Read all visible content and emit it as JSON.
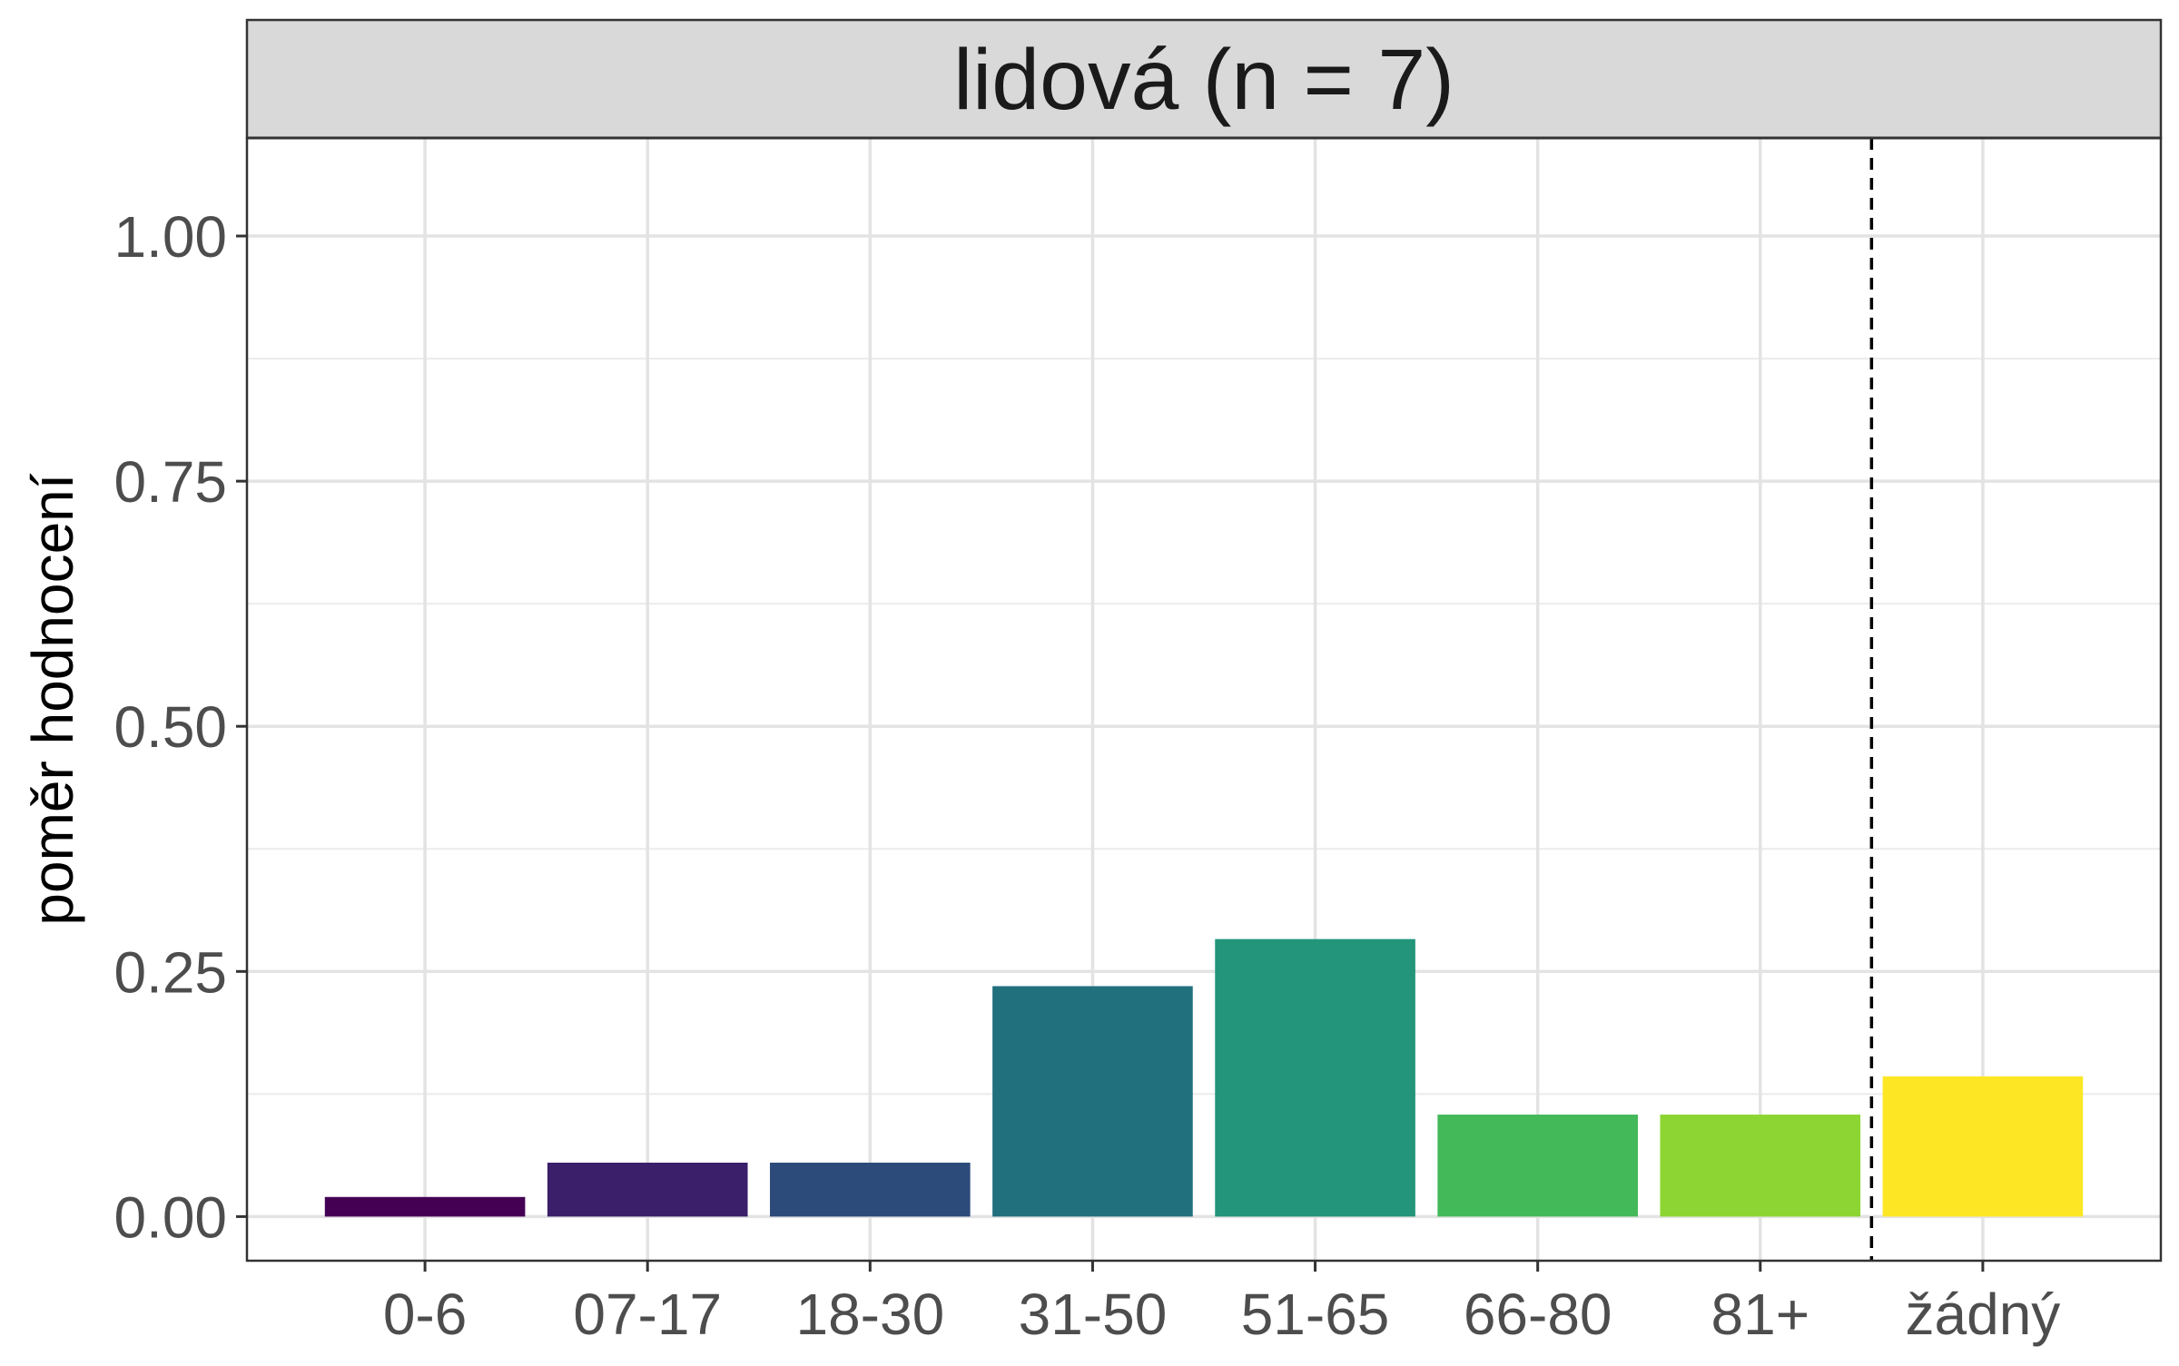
{
  "chart_data": {
    "type": "bar",
    "title": "lidová (n = 7)",
    "xlabel": "",
    "ylabel": "poměr hodnocení",
    "categories": [
      "0-6",
      "07-17",
      "18-30",
      "31-50",
      "51-65",
      "66-80",
      "81+",
      "žádný"
    ],
    "values": [
      0.02,
      0.055,
      0.055,
      0.235,
      0.283,
      0.104,
      0.104,
      0.143
    ],
    "colors": [
      "#440154",
      "#3b1f6a",
      "#2c4a7a",
      "#21707e",
      "#22957a",
      "#43b95a",
      "#8dd532",
      "#fde725"
    ],
    "ylim": [
      -0.045,
      1.1
    ],
    "yticks": [
      0.0,
      0.25,
      0.5,
      0.75,
      1.0
    ],
    "ytick_labels": [
      "0.00",
      "0.25",
      "0.50",
      "0.75",
      "1.00"
    ],
    "grid": true,
    "reference_line": {
      "style": "dashed",
      "between_categories": [
        "81+",
        "žádný"
      ]
    }
  }
}
